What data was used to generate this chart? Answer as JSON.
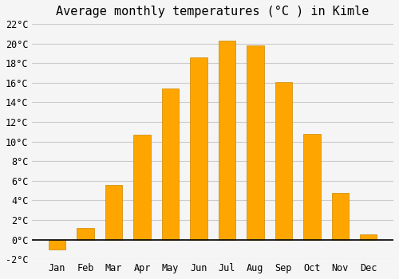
{
  "title": "Average monthly temperatures (°C ) in Kimle",
  "months": [
    "Jan",
    "Feb",
    "Mar",
    "Apr",
    "May",
    "Jun",
    "Jul",
    "Aug",
    "Sep",
    "Oct",
    "Nov",
    "Dec"
  ],
  "temperatures": [
    -1.0,
    1.2,
    5.6,
    10.7,
    15.4,
    18.6,
    20.3,
    19.8,
    16.1,
    10.8,
    4.8,
    0.5
  ],
  "bar_color": "#FFA500",
  "bar_edge_color": "#CC8800",
  "background_color": "#f5f5f5",
  "grid_color": "#cccccc",
  "ylim": [
    -2,
    22
  ],
  "ytick_step": 2,
  "title_fontsize": 11,
  "tick_fontsize": 8.5,
  "font_family": "monospace"
}
